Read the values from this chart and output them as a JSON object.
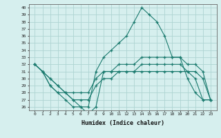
{
  "title": "",
  "xlabel": "Humidex (Indice chaleur)",
  "ylabel": "",
  "background_color": "#d6efee",
  "grid_color": "#aed4d2",
  "line_color": "#1a7a6e",
  "x": [
    0,
    1,
    2,
    3,
    4,
    5,
    6,
    7,
    8,
    9,
    10,
    11,
    12,
    13,
    14,
    15,
    16,
    17,
    18,
    19,
    20,
    21,
    22,
    23
  ],
  "line_max": [
    32,
    31,
    29,
    28,
    27,
    26,
    26,
    26,
    31,
    33,
    34,
    35,
    36,
    38,
    40,
    39,
    38,
    36,
    33,
    33,
    30,
    28,
    27,
    27
  ],
  "line_upper": [
    32,
    31,
    30,
    29,
    28,
    28,
    28,
    28,
    30,
    31,
    31,
    32,
    32,
    32,
    33,
    33,
    33,
    33,
    33,
    33,
    32,
    32,
    31,
    27
  ],
  "line_lower": [
    32,
    31,
    30,
    29,
    28,
    27,
    27,
    27,
    29,
    30,
    30,
    31,
    31,
    31,
    32,
    32,
    32,
    32,
    32,
    32,
    31,
    31,
    30,
    27
  ],
  "line_min": [
    32,
    31,
    29,
    28,
    28,
    27,
    26,
    25,
    26,
    31,
    31,
    31,
    31,
    31,
    31,
    31,
    31,
    31,
    31,
    31,
    31,
    30,
    27,
    27
  ],
  "ylim": [
    25.5,
    40.5
  ],
  "yticks": [
    26,
    27,
    28,
    29,
    30,
    31,
    32,
    33,
    34,
    35,
    36,
    37,
    38,
    39,
    40
  ],
  "xticks": [
    0,
    1,
    2,
    3,
    4,
    5,
    6,
    7,
    8,
    9,
    10,
    11,
    12,
    13,
    14,
    15,
    16,
    17,
    18,
    19,
    20,
    21,
    22,
    23
  ]
}
